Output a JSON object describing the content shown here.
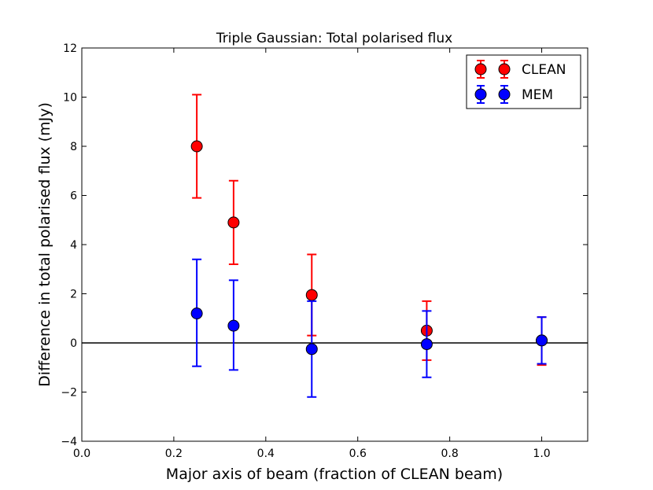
{
  "chart_data": {
    "type": "scatter",
    "title": "Triple Gaussian: Total polarised flux",
    "xlabel": "Major axis of beam (fraction of CLEAN beam)",
    "ylabel": "Difference in total polarised flux (mJy)",
    "xlim": [
      0.0,
      1.1
    ],
    "ylim": [
      -4,
      12
    ],
    "xticks": [
      0.0,
      0.2,
      0.4,
      0.6,
      0.8,
      1.0
    ],
    "xtick_labels": [
      "0.0",
      "0.2",
      "0.4",
      "0.6",
      "0.8",
      "1.0"
    ],
    "yticks": [
      -4,
      -2,
      0,
      2,
      4,
      6,
      8,
      10,
      12
    ],
    "ytick_labels": [
      "−4",
      "−2",
      "0",
      "2",
      "4",
      "6",
      "8",
      "10",
      "12"
    ],
    "grid": false,
    "legend_position": "top-right",
    "reference_line_y": 0,
    "series": [
      {
        "name": "CLEAN",
        "color": "#ff0000",
        "x": [
          0.25,
          0.33,
          0.5,
          0.75,
          1.0
        ],
        "y": [
          8.0,
          4.9,
          1.95,
          0.5,
          0.1
        ],
        "yerr_low": [
          5.9,
          3.2,
          0.3,
          -0.7,
          -0.9
        ],
        "yerr_high": [
          10.1,
          6.6,
          3.6,
          1.7,
          1.05
        ]
      },
      {
        "name": "MEM",
        "color": "#0000ff",
        "x": [
          0.25,
          0.33,
          0.5,
          0.75,
          1.0
        ],
        "y": [
          1.2,
          0.7,
          -0.25,
          -0.05,
          0.1
        ],
        "yerr_low": [
          -0.95,
          -1.1,
          -2.2,
          -1.4,
          -0.85
        ],
        "yerr_high": [
          3.4,
          2.55,
          1.7,
          1.3,
          1.05
        ]
      }
    ]
  }
}
